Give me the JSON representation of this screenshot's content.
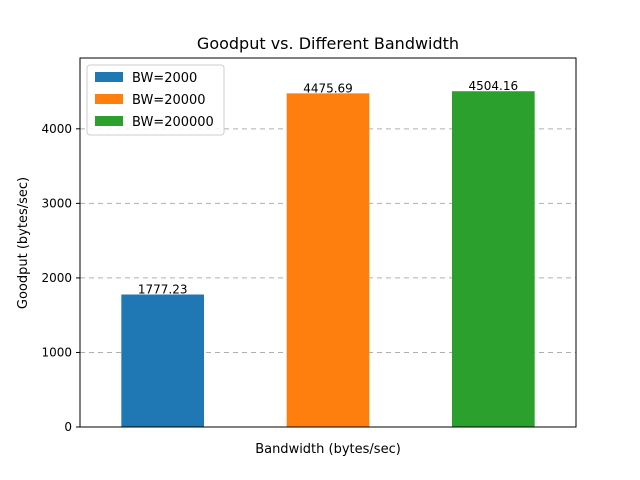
{
  "chart_data": {
    "type": "bar",
    "title": "Goodput vs. Different Bandwidth",
    "xlabel": "Bandwidth (bytes/sec)",
    "ylabel": "Goodput (bytes/sec)",
    "ylim": [
      0,
      4950
    ],
    "yticks": [
      0,
      1000,
      2000,
      3000,
      4000
    ],
    "grid": true,
    "grid_axis": "y",
    "legend_position": "top-left",
    "series": [
      {
        "name": "BW=2000",
        "value": 1777.23,
        "label": "1777.23",
        "color": "#1f77b4"
      },
      {
        "name": "BW=20000",
        "value": 4475.69,
        "label": "4475.69",
        "color": "#ff7f0e"
      },
      {
        "name": "BW=200000",
        "value": 4504.16,
        "label": "4504.16",
        "color": "#2ca02c"
      }
    ]
  }
}
